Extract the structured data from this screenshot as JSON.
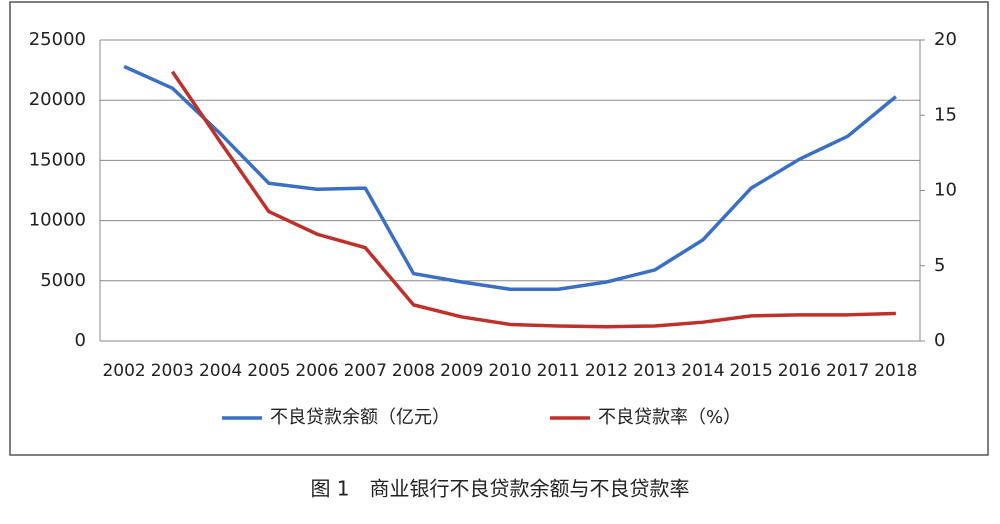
{
  "chart_data": {
    "type": "line",
    "caption": "图 1　商业银行不良贷款余额与不良贷款率",
    "categories": [
      "2002",
      "2003",
      "2004",
      "2005",
      "2006",
      "2007",
      "2008",
      "2009",
      "2010",
      "2011",
      "2012",
      "2013",
      "2014",
      "2015",
      "2016",
      "2017",
      "2018"
    ],
    "series": [
      {
        "name": "不良贷款余额（亿元）",
        "color": "#3a6fc4",
        "values": [
          22800,
          21000,
          17200,
          13100,
          12600,
          12700,
          5600,
          4900,
          4300,
          4300,
          4900,
          5900,
          8400,
          12700,
          15100,
          17000,
          20300
        ]
      },
      {
        "name": "不良贷款率（%）",
        "color": "#c0302b",
        "axis": "y2",
        "values": [
          null,
          17.9,
          13.2,
          8.6,
          7.1,
          6.2,
          2.4,
          1.6,
          1.1,
          1.0,
          0.95,
          1.0,
          1.25,
          1.67,
          1.74,
          1.74,
          1.83
        ]
      }
    ],
    "ylim": [
      0,
      25000
    ],
    "yticks": [
      0,
      5000,
      10000,
      15000,
      20000,
      25000
    ],
    "y2lim": [
      0,
      20
    ],
    "y2ticks": [
      0,
      5,
      10,
      15,
      20
    ],
    "grid": true,
    "legend": "bottom"
  }
}
